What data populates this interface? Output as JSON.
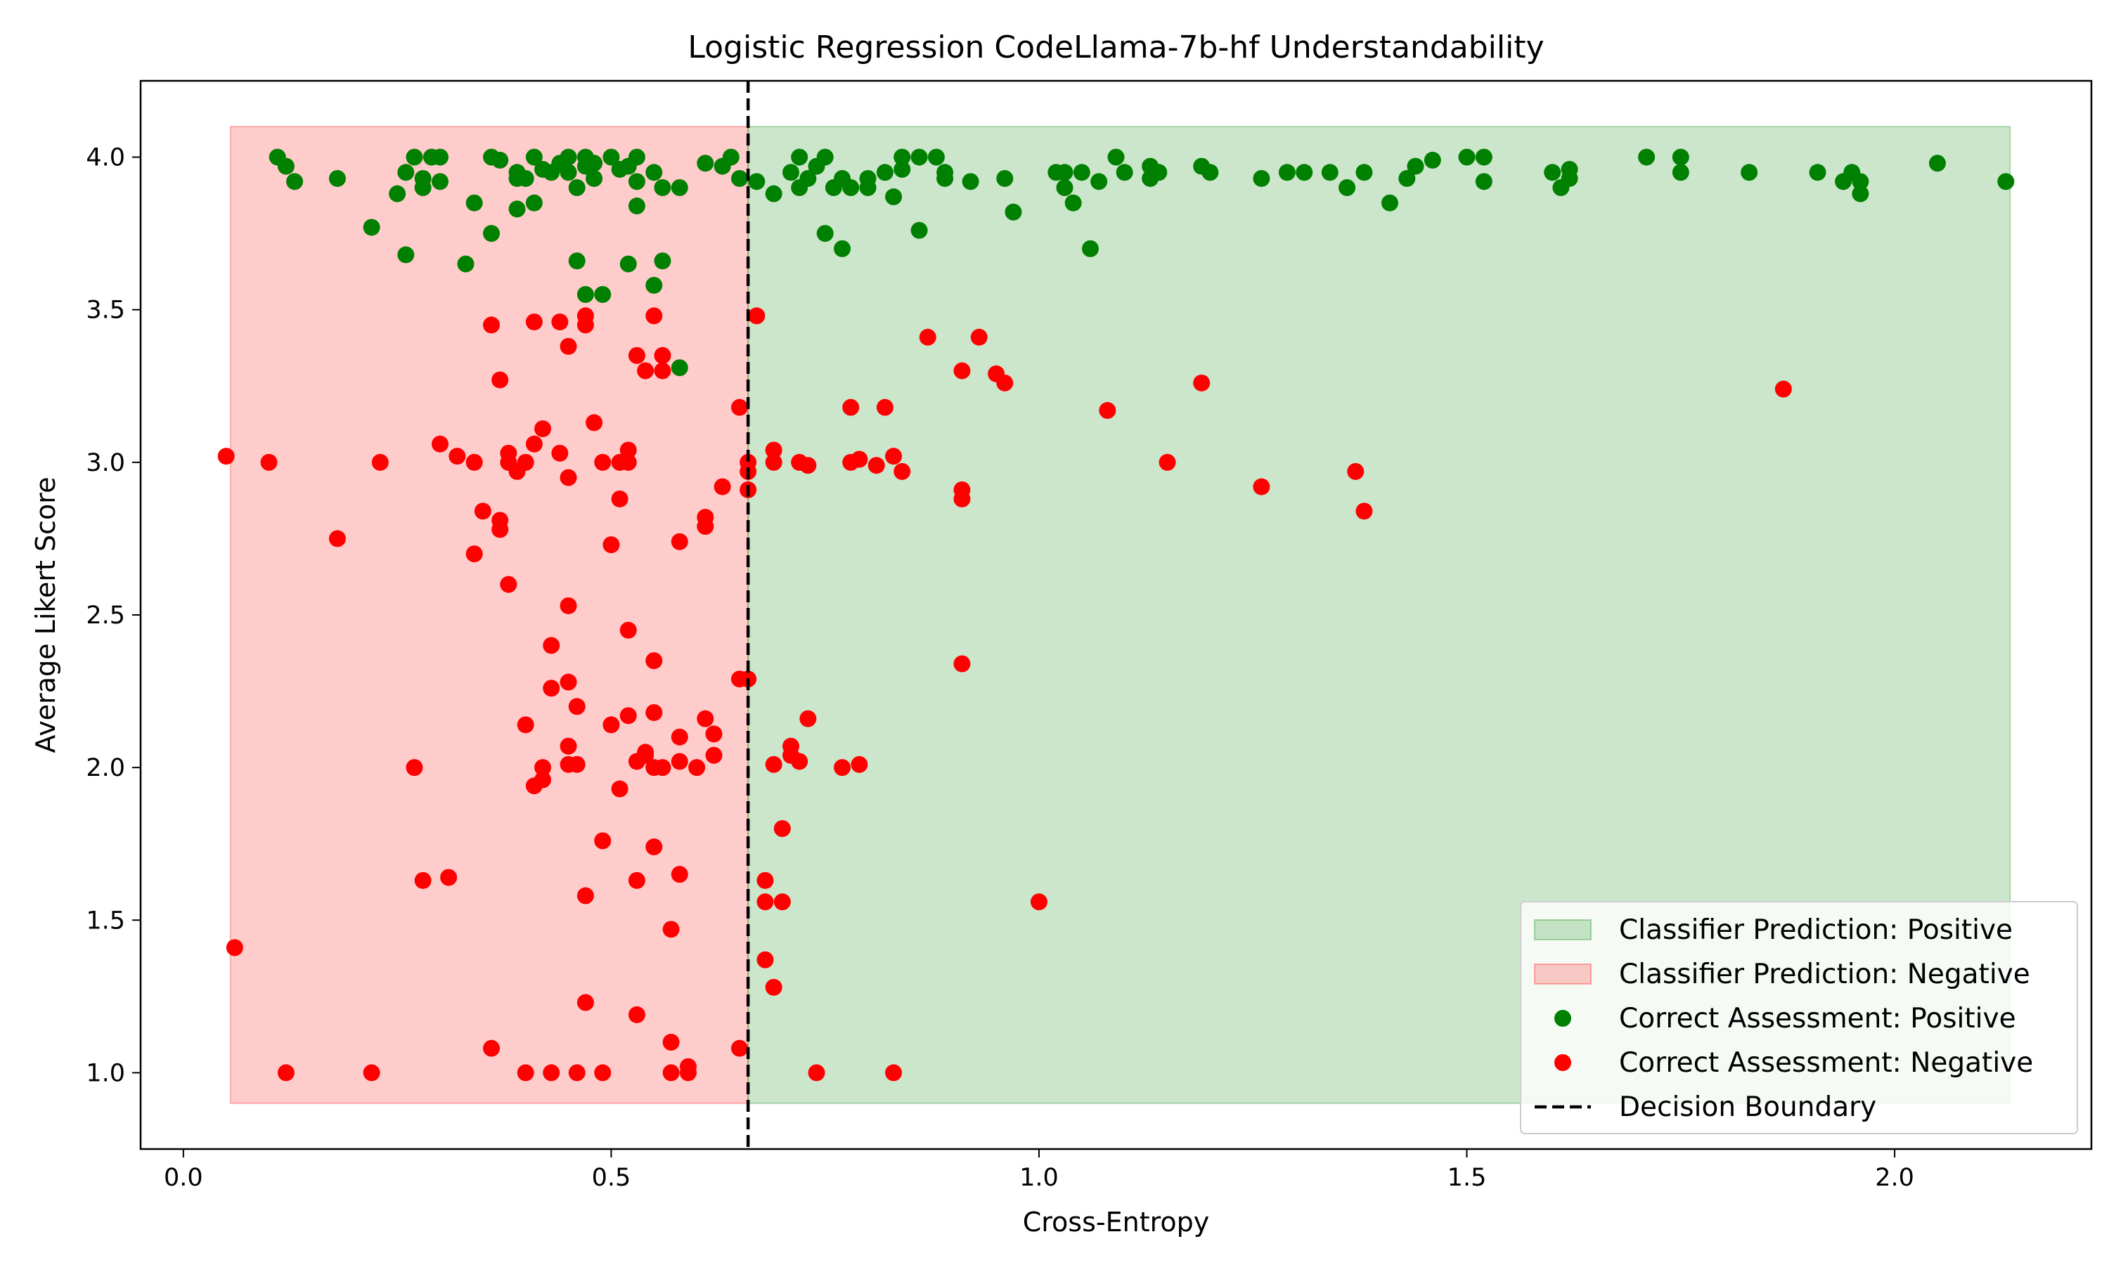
{
  "chart_data": {
    "type": "scatter",
    "title": "Logistic Regression CodeLlama-7b-hf Understandability",
    "xlabel": "Cross-Entropy",
    "ylabel": "Average Likert Score",
    "xlim": [
      -0.05,
      2.23
    ],
    "ylim": [
      0.75,
      4.25
    ],
    "xticks": [
      0.0,
      0.5,
      1.0,
      1.5,
      2.0
    ],
    "xtick_labels": [
      "0.0",
      "0.5",
      "1.0",
      "1.5",
      "2.0"
    ],
    "yticks": [
      1.0,
      1.5,
      2.0,
      2.5,
      3.0,
      3.5,
      4.0
    ],
    "ytick_labels": [
      "1.0",
      "1.5",
      "2.0",
      "2.5",
      "3.0",
      "3.5",
      "4.0"
    ],
    "grid": false,
    "legend_position": "lower-right",
    "decision_boundary": 0.66,
    "regions": [
      {
        "label": "Classifier Prediction: Negative",
        "x_range": [
          0.055,
          0.66
        ],
        "y_range": [
          0.9,
          4.1
        ],
        "color": "#ff0000",
        "opacity": 0.2
      },
      {
        "label": "Classifier Prediction: Positive",
        "x_range": [
          0.66,
          2.135
        ],
        "y_range": [
          0.9,
          4.1
        ],
        "color": "#008000",
        "opacity": 0.2
      }
    ],
    "series": [
      {
        "name": "Correct Assessment: Positive",
        "color": "#008000",
        "points": [
          [
            0.11,
            4.0
          ],
          [
            0.12,
            3.97
          ],
          [
            0.13,
            3.92
          ],
          [
            0.18,
            3.93
          ],
          [
            0.22,
            3.77
          ],
          [
            0.25,
            3.88
          ],
          [
            0.26,
            3.95
          ],
          [
            0.26,
            3.68
          ],
          [
            0.27,
            4.0
          ],
          [
            0.28,
            3.93
          ],
          [
            0.28,
            3.9
          ],
          [
            0.29,
            4.0
          ],
          [
            0.3,
            4.0
          ],
          [
            0.3,
            3.92
          ],
          [
            0.33,
            3.65
          ],
          [
            0.34,
            3.85
          ],
          [
            0.36,
            4.0
          ],
          [
            0.36,
            3.75
          ],
          [
            0.37,
            3.99
          ],
          [
            0.39,
            3.95
          ],
          [
            0.39,
            3.93
          ],
          [
            0.39,
            3.83
          ],
          [
            0.4,
            3.93
          ],
          [
            0.41,
            4.0
          ],
          [
            0.41,
            3.85
          ],
          [
            0.42,
            3.96
          ],
          [
            0.43,
            3.95
          ],
          [
            0.44,
            3.98
          ],
          [
            0.45,
            4.0
          ],
          [
            0.45,
            3.95
          ],
          [
            0.46,
            3.9
          ],
          [
            0.46,
            3.66
          ],
          [
            0.47,
            4.0
          ],
          [
            0.47,
            3.97
          ],
          [
            0.47,
            3.55
          ],
          [
            0.48,
            3.93
          ],
          [
            0.48,
            3.98
          ],
          [
            0.49,
            3.55
          ],
          [
            0.5,
            4.0
          ],
          [
            0.51,
            3.96
          ],
          [
            0.52,
            3.97
          ],
          [
            0.52,
            3.65
          ],
          [
            0.53,
            3.92
          ],
          [
            0.53,
            4.0
          ],
          [
            0.53,
            3.84
          ],
          [
            0.55,
            3.95
          ],
          [
            0.55,
            3.58
          ],
          [
            0.56,
            3.9
          ],
          [
            0.56,
            3.66
          ],
          [
            0.58,
            3.9
          ],
          [
            0.58,
            3.31
          ],
          [
            0.61,
            3.98
          ],
          [
            0.63,
            3.97
          ],
          [
            0.64,
            4.0
          ],
          [
            0.65,
            3.93
          ],
          [
            0.67,
            3.92
          ],
          [
            0.69,
            3.88
          ],
          [
            0.71,
            3.95
          ],
          [
            0.72,
            4.0
          ],
          [
            0.72,
            3.9
          ],
          [
            0.73,
            3.93
          ],
          [
            0.74,
            3.97
          ],
          [
            0.75,
            4.0
          ],
          [
            0.75,
            3.75
          ],
          [
            0.76,
            3.9
          ],
          [
            0.77,
            3.93
          ],
          [
            0.77,
            3.7
          ],
          [
            0.78,
            3.9
          ],
          [
            0.8,
            3.93
          ],
          [
            0.8,
            3.9
          ],
          [
            0.82,
            3.95
          ],
          [
            0.83,
            3.87
          ],
          [
            0.84,
            4.0
          ],
          [
            0.84,
            3.96
          ],
          [
            0.86,
            4.0
          ],
          [
            0.86,
            3.76
          ],
          [
            0.88,
            4.0
          ],
          [
            0.89,
            3.95
          ],
          [
            0.89,
            3.93
          ],
          [
            0.92,
            3.92
          ],
          [
            0.96,
            3.93
          ],
          [
            0.97,
            3.82
          ],
          [
            1.02,
            3.95
          ],
          [
            1.03,
            3.95
          ],
          [
            1.03,
            3.9
          ],
          [
            1.04,
            3.85
          ],
          [
            1.05,
            3.95
          ],
          [
            1.06,
            3.7
          ],
          [
            1.07,
            3.92
          ],
          [
            1.09,
            4.0
          ],
          [
            1.1,
            3.95
          ],
          [
            1.13,
            3.93
          ],
          [
            1.13,
            3.97
          ],
          [
            1.14,
            3.95
          ],
          [
            1.19,
            3.97
          ],
          [
            1.2,
            3.95
          ],
          [
            1.26,
            3.93
          ],
          [
            1.29,
            3.95
          ],
          [
            1.31,
            3.95
          ],
          [
            1.34,
            3.95
          ],
          [
            1.36,
            3.9
          ],
          [
            1.38,
            3.95
          ],
          [
            1.41,
            3.85
          ],
          [
            1.43,
            3.93
          ],
          [
            1.44,
            3.97
          ],
          [
            1.46,
            3.99
          ],
          [
            1.5,
            4.0
          ],
          [
            1.52,
            4.0
          ],
          [
            1.52,
            3.92
          ],
          [
            1.6,
            3.95
          ],
          [
            1.61,
            3.9
          ],
          [
            1.62,
            3.93
          ],
          [
            1.62,
            3.96
          ],
          [
            1.71,
            4.0
          ],
          [
            1.75,
            4.0
          ],
          [
            1.75,
            3.95
          ],
          [
            1.83,
            3.95
          ],
          [
            1.91,
            3.95
          ],
          [
            1.94,
            3.92
          ],
          [
            1.95,
            3.95
          ],
          [
            1.96,
            3.92
          ],
          [
            1.96,
            3.88
          ],
          [
            2.05,
            3.98
          ],
          [
            2.13,
            3.92
          ]
        ]
      },
      {
        "name": "Correct Assessment: Negative",
        "color": "#ff0000",
        "points": [
          [
            0.05,
            3.02
          ],
          [
            0.06,
            1.41
          ],
          [
            0.1,
            3.0
          ],
          [
            0.12,
            1.0
          ],
          [
            0.18,
            2.75
          ],
          [
            0.22,
            1.0
          ],
          [
            0.23,
            3.0
          ],
          [
            0.27,
            2.0
          ],
          [
            0.28,
            1.63
          ],
          [
            0.3,
            3.06
          ],
          [
            0.31,
            1.64
          ],
          [
            0.32,
            3.02
          ],
          [
            0.34,
            3.0
          ],
          [
            0.34,
            2.7
          ],
          [
            0.35,
            2.84
          ],
          [
            0.36,
            1.08
          ],
          [
            0.36,
            3.45
          ],
          [
            0.37,
            2.78
          ],
          [
            0.37,
            2.81
          ],
          [
            0.37,
            3.27
          ],
          [
            0.38,
            3.03
          ],
          [
            0.38,
            2.6
          ],
          [
            0.38,
            3.0
          ],
          [
            0.39,
            2.97
          ],
          [
            0.4,
            3.0
          ],
          [
            0.4,
            2.14
          ],
          [
            0.4,
            1.0
          ],
          [
            0.41,
            3.06
          ],
          [
            0.41,
            3.46
          ],
          [
            0.41,
            1.94
          ],
          [
            0.42,
            2.0
          ],
          [
            0.42,
            1.96
          ],
          [
            0.42,
            3.11
          ],
          [
            0.43,
            2.4
          ],
          [
            0.43,
            2.26
          ],
          [
            0.43,
            1.0
          ],
          [
            0.44,
            3.03
          ],
          [
            0.44,
            3.46
          ],
          [
            0.45,
            3.38
          ],
          [
            0.45,
            2.95
          ],
          [
            0.45,
            2.53
          ],
          [
            0.45,
            2.28
          ],
          [
            0.45,
            2.07
          ],
          [
            0.45,
            2.01
          ],
          [
            0.46,
            2.2
          ],
          [
            0.46,
            1.0
          ],
          [
            0.46,
            2.01
          ],
          [
            0.47,
            3.45
          ],
          [
            0.47,
            3.48
          ],
          [
            0.47,
            1.58
          ],
          [
            0.47,
            1.23
          ],
          [
            0.48,
            3.13
          ],
          [
            0.49,
            1.0
          ],
          [
            0.49,
            3.0
          ],
          [
            0.49,
            1.76
          ],
          [
            0.5,
            2.14
          ],
          [
            0.5,
            2.73
          ],
          [
            0.51,
            3.0
          ],
          [
            0.51,
            2.88
          ],
          [
            0.51,
            1.93
          ],
          [
            0.52,
            3.04
          ],
          [
            0.52,
            3.0
          ],
          [
            0.52,
            2.45
          ],
          [
            0.52,
            2.17
          ],
          [
            0.53,
            2.02
          ],
          [
            0.53,
            1.63
          ],
          [
            0.53,
            1.19
          ],
          [
            0.53,
            3.35
          ],
          [
            0.54,
            3.3
          ],
          [
            0.54,
            2.05
          ],
          [
            0.54,
            2.04
          ],
          [
            0.55,
            2.18
          ],
          [
            0.55,
            2.0
          ],
          [
            0.55,
            1.74
          ],
          [
            0.55,
            3.48
          ],
          [
            0.55,
            2.35
          ],
          [
            0.56,
            3.3
          ],
          [
            0.56,
            3.35
          ],
          [
            0.56,
            2.0
          ],
          [
            0.57,
            1.47
          ],
          [
            0.57,
            1.0
          ],
          [
            0.57,
            1.1
          ],
          [
            0.58,
            2.1
          ],
          [
            0.58,
            1.65
          ],
          [
            0.58,
            2.02
          ],
          [
            0.58,
            2.74
          ],
          [
            0.59,
            1.0
          ],
          [
            0.59,
            1.02
          ],
          [
            0.6,
            2.0
          ],
          [
            0.61,
            2.79
          ],
          [
            0.61,
            2.82
          ],
          [
            0.61,
            2.16
          ],
          [
            0.62,
            2.11
          ],
          [
            0.62,
            2.04
          ],
          [
            0.63,
            2.92
          ],
          [
            0.65,
            1.08
          ],
          [
            0.65,
            2.29
          ],
          [
            0.65,
            3.18
          ],
          [
            0.66,
            2.29
          ],
          [
            0.66,
            2.91
          ],
          [
            0.66,
            2.97
          ],
          [
            0.66,
            3.0
          ],
          [
            0.67,
            3.48
          ],
          [
            0.68,
            1.37
          ],
          [
            0.68,
            1.63
          ],
          [
            0.68,
            1.56
          ],
          [
            0.69,
            1.28
          ],
          [
            0.69,
            3.04
          ],
          [
            0.69,
            3.0
          ],
          [
            0.69,
            2.01
          ],
          [
            0.7,
            1.56
          ],
          [
            0.7,
            1.8
          ],
          [
            0.71,
            2.07
          ],
          [
            0.71,
            2.04
          ],
          [
            0.72,
            3.0
          ],
          [
            0.72,
            2.02
          ],
          [
            0.73,
            2.16
          ],
          [
            0.73,
            2.99
          ],
          [
            0.74,
            1.0
          ],
          [
            0.77,
            2.0
          ],
          [
            0.78,
            3.0
          ],
          [
            0.78,
            3.18
          ],
          [
            0.79,
            3.01
          ],
          [
            0.79,
            2.01
          ],
          [
            0.81,
            2.99
          ],
          [
            0.82,
            3.18
          ],
          [
            0.83,
            3.02
          ],
          [
            0.83,
            1.0
          ],
          [
            0.84,
            2.97
          ],
          [
            0.87,
            3.41
          ],
          [
            0.91,
            3.3
          ],
          [
            0.91,
            2.88
          ],
          [
            0.91,
            2.91
          ],
          [
            0.91,
            2.34
          ],
          [
            0.93,
            3.41
          ],
          [
            0.95,
            3.29
          ],
          [
            0.96,
            3.26
          ],
          [
            1.0,
            1.56
          ],
          [
            1.08,
            3.17
          ],
          [
            1.15,
            3.0
          ],
          [
            1.19,
            3.26
          ],
          [
            1.26,
            2.92
          ],
          [
            1.37,
            2.97
          ],
          [
            1.38,
            2.84
          ],
          [
            1.87,
            3.24
          ]
        ]
      }
    ],
    "legend_entries": [
      {
        "label": "Classifier Prediction: Positive",
        "kind": "patch",
        "color": "#008000"
      },
      {
        "label": "Classifier Prediction: Negative",
        "kind": "patch",
        "color": "#ff0000"
      },
      {
        "label": "Correct Assessment: Positive",
        "kind": "marker",
        "color": "#008000"
      },
      {
        "label": "Correct Assessment: Negative",
        "kind": "marker",
        "color": "#ff0000"
      },
      {
        "label": "Decision Boundary",
        "kind": "dashed-line",
        "color": "#000000"
      }
    ]
  }
}
